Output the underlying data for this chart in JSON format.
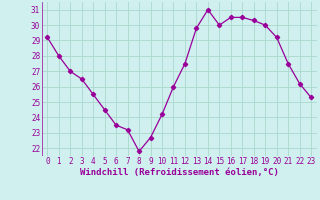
{
  "x": [
    0,
    1,
    2,
    3,
    4,
    5,
    6,
    7,
    8,
    9,
    10,
    11,
    12,
    13,
    14,
    15,
    16,
    17,
    18,
    19,
    20,
    21,
    22,
    23
  ],
  "y": [
    29.2,
    28.0,
    27.0,
    26.5,
    25.5,
    24.5,
    23.5,
    23.2,
    21.8,
    22.7,
    24.2,
    26.0,
    27.5,
    29.8,
    31.0,
    30.0,
    30.5,
    30.5,
    30.3,
    30.0,
    29.2,
    27.5,
    26.2,
    25.3
  ],
  "line_color": "#990099",
  "marker": "D",
  "marker_size": 2.2,
  "bg_color": "#cff0ee",
  "grid_color": "#aad8cc",
  "xlabel": "Windchill (Refroidissement éolien,°C)",
  "ylabel_ticks": [
    22,
    23,
    24,
    25,
    26,
    27,
    28,
    29,
    30,
    31
  ],
  "xticks": [
    0,
    1,
    2,
    3,
    4,
    5,
    6,
    7,
    8,
    9,
    10,
    11,
    12,
    13,
    14,
    15,
    16,
    17,
    18,
    19,
    20,
    21,
    22,
    23
  ],
  "ylim": [
    21.5,
    31.5
  ],
  "xlim": [
    -0.5,
    23.5
  ],
  "tick_fontsize": 5.5,
  "xlabel_fontsize": 6.5
}
